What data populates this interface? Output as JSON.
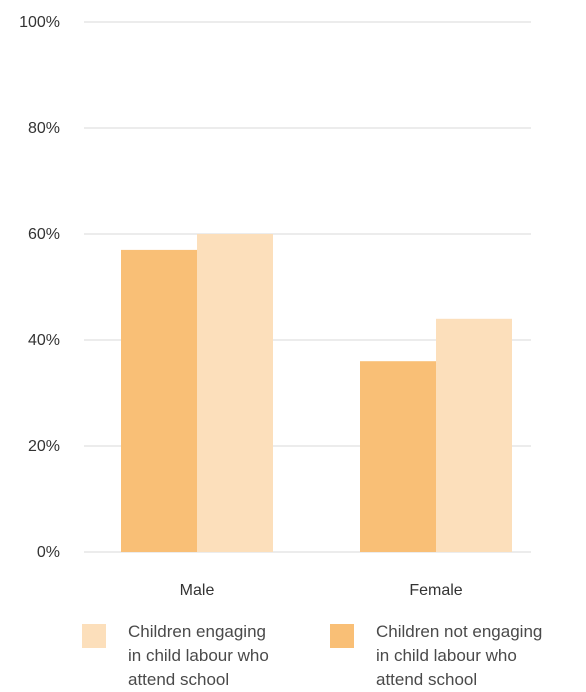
{
  "chart_data": {
    "type": "bar",
    "categories": [
      "Male",
      "Female"
    ],
    "series": [
      {
        "name": "Children not engaging\n in child labour who\nattend school",
        "color": "#f9bf76",
        "values": [
          57,
          36
        ]
      },
      {
        "name": "Children engaging\nin child labour who\nattend school",
        "color": "#fcdfbb",
        "values": [
          60,
          44
        ]
      }
    ],
    "yticks": [
      "0%",
      "20%",
      "40%",
      "60%",
      "80%",
      "100%"
    ],
    "ylim": [
      0,
      100
    ],
    "grid": true,
    "legend_position": "bottom"
  }
}
